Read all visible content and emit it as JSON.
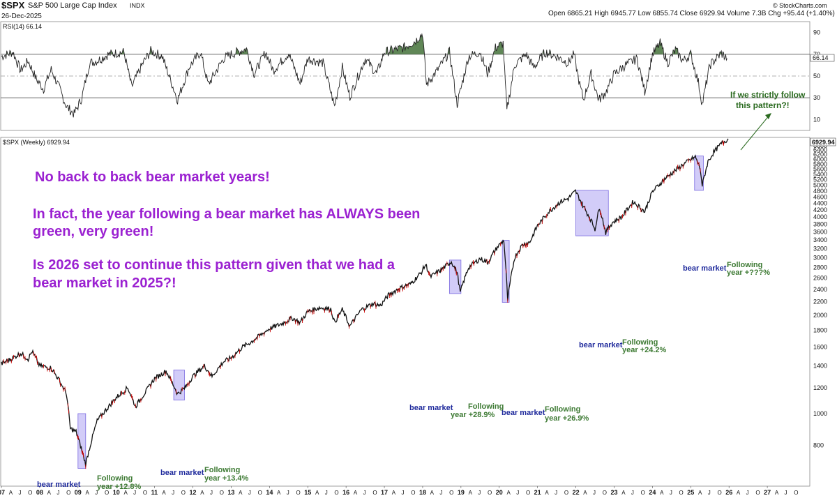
{
  "header": {
    "symbol": "$SPX",
    "name": "S&P 500 Large Cap Index",
    "exchange": "INDX",
    "date": "26-Dec-2025",
    "quote": "Open 6865.21  High 6945.77  Low 6855.74  Close 6929.94  Volume 7.3B  Chg +95.44 (+1.40%)",
    "brand": "© StockCharts.com"
  },
  "rsi_panel": {
    "label": "RSI(14) 66.14",
    "current_value": "66.14"
  },
  "price_panel": {
    "label": "$SPX (Weekly) 6929.94",
    "current_value": "6929.94"
  },
  "annotations": {
    "headline1": "No back to back bear market years!",
    "headline2": "In fact, the year following a bear market has ALWAYS been",
    "headline3": "green, very green!",
    "headline4": "Is 2026 set to continue this pattern given that we had a",
    "headline5": "bear market in 2025?!",
    "question1": "If we strictly follow",
    "question2": "this pattern?!",
    "bear_label": "bear market",
    "following_label": "Following",
    "following": [
      "year +12.8%",
      "year +13.4%",
      "year +28.9%",
      "year +26.9%",
      "year +24.2%",
      "year +???%"
    ]
  },
  "colors": {
    "headline": "#9b21d1",
    "bear_text": "#1f2a9c",
    "following_text": "#3d7a33",
    "bear_box": "#9c8ff0",
    "rsi_fill": "#4f7a45",
    "down_bar": "#cc0000"
  },
  "chart_data": [
    {
      "type": "line",
      "name": "RSI",
      "ylim": [
        0,
        100
      ],
      "y_ticks": [
        10,
        30,
        50,
        70,
        90
      ],
      "reference_lines": [
        30,
        50,
        70
      ],
      "x_start": 2007.0,
      "x_end": 2028.0,
      "points": [
        [
          2007.0,
          68
        ],
        [
          2007.3,
          72
        ],
        [
          2007.5,
          55
        ],
        [
          2007.7,
          64
        ],
        [
          2007.9,
          48
        ],
        [
          2008.1,
          38
        ],
        [
          2008.3,
          56
        ],
        [
          2008.5,
          40
        ],
        [
          2008.7,
          22
        ],
        [
          2008.9,
          15
        ],
        [
          2009.1,
          30
        ],
        [
          2009.3,
          62
        ],
        [
          2009.5,
          64
        ],
        [
          2009.8,
          70
        ],
        [
          2010.2,
          72
        ],
        [
          2010.4,
          40
        ],
        [
          2010.7,
          62
        ],
        [
          2010.9,
          73
        ],
        [
          2011.2,
          68
        ],
        [
          2011.6,
          28
        ],
        [
          2011.9,
          58
        ],
        [
          2012.2,
          72
        ],
        [
          2012.4,
          42
        ],
        [
          2012.8,
          66
        ],
        [
          2013.0,
          70
        ],
        [
          2013.4,
          75
        ],
        [
          2013.6,
          52
        ],
        [
          2013.9,
          72
        ],
        [
          2014.1,
          55
        ],
        [
          2014.5,
          71
        ],
        [
          2014.8,
          43
        ],
        [
          2015.0,
          66
        ],
        [
          2015.4,
          62
        ],
        [
          2015.7,
          22
        ],
        [
          2015.9,
          58
        ],
        [
          2016.1,
          31
        ],
        [
          2016.5,
          66
        ],
        [
          2016.8,
          52
        ],
        [
          2017.0,
          72
        ],
        [
          2017.5,
          76
        ],
        [
          2017.8,
          82
        ],
        [
          2018.0,
          89
        ],
        [
          2018.1,
          42
        ],
        [
          2018.4,
          56
        ],
        [
          2018.7,
          72
        ],
        [
          2018.9,
          24
        ],
        [
          2019.2,
          68
        ],
        [
          2019.5,
          72
        ],
        [
          2019.7,
          52
        ],
        [
          2019.9,
          76
        ],
        [
          2020.1,
          80
        ],
        [
          2020.2,
          18
        ],
        [
          2020.4,
          60
        ],
        [
          2020.7,
          70
        ],
        [
          2020.9,
          58
        ],
        [
          2021.2,
          72
        ],
        [
          2021.5,
          68
        ],
        [
          2021.8,
          62
        ],
        [
          2021.95,
          70
        ],
        [
          2022.1,
          42
        ],
        [
          2022.2,
          28
        ],
        [
          2022.4,
          52
        ],
        [
          2022.6,
          28
        ],
        [
          2022.8,
          36
        ],
        [
          2023.0,
          52
        ],
        [
          2023.3,
          60
        ],
        [
          2023.6,
          66
        ],
        [
          2023.8,
          36
        ],
        [
          2024.0,
          70
        ],
        [
          2024.2,
          80
        ],
        [
          2024.4,
          62
        ],
        [
          2024.6,
          74
        ],
        [
          2024.8,
          64
        ],
        [
          2025.0,
          70
        ],
        [
          2025.2,
          44
        ],
        [
          2025.3,
          24
        ],
        [
          2025.5,
          60
        ],
        [
          2025.8,
          71
        ],
        [
          2025.95,
          66.14
        ]
      ]
    },
    {
      "type": "line",
      "name": "$SPX",
      "ylabel": "",
      "ylim": [
        600,
        7000
      ],
      "y_ticks": [
        800,
        1000,
        1200,
        1400,
        1600,
        1800,
        2000,
        2200,
        2400,
        2600,
        2800,
        3000,
        3200,
        3400,
        3600,
        3800,
        4000,
        4200,
        4400,
        4600,
        4800,
        5000,
        5200,
        5400,
        5600,
        5800,
        6000,
        6200,
        6400,
        6600,
        6800
      ],
      "x_start": 2007.0,
      "x_end": 2028.0,
      "x_labels": [
        "07",
        "08",
        "09",
        "10",
        "11",
        "12",
        "13",
        "14",
        "15",
        "16",
        "17",
        "18",
        "19",
        "20",
        "21",
        "22",
        "23",
        "24",
        "25",
        "26",
        "27"
      ],
      "month_labels": [
        "A",
        "J",
        "O"
      ],
      "points": [
        [
          2007.0,
          1420
        ],
        [
          2007.3,
          1480
        ],
        [
          2007.5,
          1530
        ],
        [
          2007.7,
          1470
        ],
        [
          2007.8,
          1550
        ],
        [
          2008.0,
          1400
        ],
        [
          2008.3,
          1380
        ],
        [
          2008.5,
          1270
        ],
        [
          2008.7,
          1150
        ],
        [
          2008.8,
          900
        ],
        [
          2008.95,
          880
        ],
        [
          2009.2,
          700
        ],
        [
          2009.5,
          950
        ],
        [
          2009.8,
          1050
        ],
        [
          2010.0,
          1120
        ],
        [
          2010.3,
          1200
        ],
        [
          2010.5,
          1050
        ],
        [
          2010.8,
          1180
        ],
        [
          2011.0,
          1280
        ],
        [
          2011.3,
          1350
        ],
        [
          2011.6,
          1150
        ],
        [
          2011.8,
          1200
        ],
        [
          2012.0,
          1300
        ],
        [
          2012.3,
          1400
        ],
        [
          2012.5,
          1300
        ],
        [
          2012.8,
          1440
        ],
        [
          2013.0,
          1480
        ],
        [
          2013.3,
          1600
        ],
        [
          2013.5,
          1650
        ],
        [
          2013.8,
          1750
        ],
        [
          2014.0,
          1820
        ],
        [
          2014.3,
          1880
        ],
        [
          2014.6,
          1960
        ],
        [
          2014.8,
          1900
        ],
        [
          2015.0,
          2050
        ],
        [
          2015.3,
          2110
        ],
        [
          2015.6,
          2090
        ],
        [
          2015.7,
          1900
        ],
        [
          2015.9,
          2080
        ],
        [
          2016.1,
          1850
        ],
        [
          2016.4,
          2080
        ],
        [
          2016.7,
          2170
        ],
        [
          2016.9,
          2140
        ],
        [
          2017.1,
          2300
        ],
        [
          2017.4,
          2420
        ],
        [
          2017.7,
          2500
        ],
        [
          2017.95,
          2690
        ],
        [
          2018.08,
          2860
        ],
        [
          2018.2,
          2620
        ],
        [
          2018.5,
          2760
        ],
        [
          2018.75,
          2920
        ],
        [
          2018.9,
          2700
        ],
        [
          2018.98,
          2350
        ],
        [
          2019.2,
          2800
        ],
        [
          2019.5,
          2980
        ],
        [
          2019.7,
          2900
        ],
        [
          2019.95,
          3230
        ],
        [
          2020.12,
          3390
        ],
        [
          2020.22,
          2230
        ],
        [
          2020.4,
          3000
        ],
        [
          2020.6,
          3280
        ],
        [
          2020.8,
          3350
        ],
        [
          2021.0,
          3760
        ],
        [
          2021.3,
          4150
        ],
        [
          2021.6,
          4450
        ],
        [
          2021.8,
          4550
        ],
        [
          2021.99,
          4790
        ],
        [
          2022.2,
          4300
        ],
        [
          2022.4,
          3900
        ],
        [
          2022.5,
          3670
        ],
        [
          2022.62,
          4280
        ],
        [
          2022.78,
          3580
        ],
        [
          2022.95,
          3840
        ],
        [
          2023.2,
          4000
        ],
        [
          2023.5,
          4450
        ],
        [
          2023.8,
          4150
        ],
        [
          2024.0,
          4770
        ],
        [
          2024.3,
          5200
        ],
        [
          2024.6,
          5550
        ],
        [
          2024.8,
          5780
        ],
        [
          2025.12,
          6100
        ],
        [
          2025.25,
          5600
        ],
        [
          2025.3,
          4980
        ],
        [
          2025.45,
          5900
        ],
        [
          2025.6,
          6300
        ],
        [
          2025.8,
          6700
        ],
        [
          2025.98,
          6929.94
        ]
      ],
      "bear_market_periods": [
        {
          "from": 2009.0,
          "to": 2009.2,
          "low": 680,
          "high": 1000,
          "following_year": "+12.8%"
        },
        {
          "from": 2011.5,
          "to": 2011.78,
          "low": 1100,
          "high": 1360,
          "following_year": "+13.4%"
        },
        {
          "from": 2018.7,
          "to": 2019.0,
          "low": 2330,
          "high": 2950,
          "following_year": "+28.9%"
        },
        {
          "from": 2020.08,
          "to": 2020.26,
          "low": 2190,
          "high": 3390,
          "following_year": "+26.9%"
        },
        {
          "from": 2022.0,
          "to": 2022.85,
          "low": 3500,
          "high": 4820,
          "following_year": "+24.2%"
        },
        {
          "from": 2025.1,
          "to": 2025.33,
          "low": 4820,
          "high": 6140,
          "following_year": "+???%"
        }
      ]
    }
  ]
}
